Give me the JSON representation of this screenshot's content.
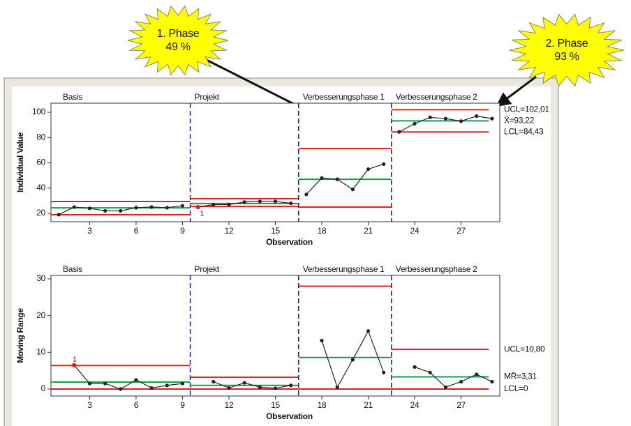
{
  "callouts": [
    {
      "title": "1. Phase",
      "value": "49 %"
    },
    {
      "title": "2. Phase",
      "value": "93 %"
    }
  ],
  "chart_data": [
    {
      "type": "line",
      "ylabel": "Individual Value",
      "xlabel": "Observation",
      "x": [
        1,
        2,
        3,
        4,
        5,
        6,
        7,
        8,
        9,
        10,
        11,
        12,
        13,
        14,
        15,
        16,
        17,
        18,
        19,
        20,
        21,
        22,
        23,
        24,
        25,
        26,
        27,
        28,
        29
      ],
      "values": [
        19,
        25,
        24,
        22,
        22,
        24.5,
        25,
        24.5,
        26,
        25,
        27,
        27,
        29,
        29.5,
        29.5,
        28,
        35,
        48,
        47,
        39,
        55,
        59,
        84.5,
        91,
        96,
        95,
        93,
        97,
        95
      ],
      "color": "#222222",
      "highlight_color": "#e02020",
      "flags": [
        {
          "index": 9,
          "label": "1"
        }
      ],
      "xlim": [
        0.5,
        29.5
      ],
      "xticks": [
        3,
        6,
        9,
        12,
        15,
        18,
        21,
        24,
        27
      ],
      "ylim": [
        13.4,
        107.2
      ],
      "yticks": [
        20,
        40,
        60,
        80,
        100
      ],
      "phases": [
        {
          "name": "Basis",
          "first": 1,
          "last": 9,
          "ucl": 29.4,
          "mean": 24.4,
          "lcl": 18.9
        },
        {
          "name": "Projekt",
          "first": 10,
          "last": 16,
          "ucl": 31.6,
          "mean": 27.8,
          "lcl": 25.5
        },
        {
          "name": "Verbesserungsphase 1",
          "first": 17,
          "last": 22,
          "ucl": 71.3,
          "mean": 47,
          "lcl": 25
        },
        {
          "name": "Verbesserungsphase 2",
          "first": 23,
          "last": 29,
          "ucl": 102.01,
          "mean": 93.22,
          "lcl": 84.43
        }
      ],
      "limit_labels": [
        {
          "value": 102.01,
          "label": "UCL=102,01"
        },
        {
          "value": 93.22,
          "label": "X̄=93,22"
        },
        {
          "value": 84.43,
          "label": "LCL=84,43"
        }
      ]
    },
    {
      "type": "line",
      "ylabel": "Moving Range",
      "xlabel": "Observation",
      "x": [
        1,
        2,
        3,
        4,
        5,
        6,
        7,
        8,
        9,
        10,
        11,
        12,
        13,
        14,
        15,
        16,
        17,
        18,
        19,
        20,
        21,
        22,
        23,
        24,
        25,
        26,
        27,
        28,
        29
      ],
      "values": [
        null,
        6.5,
        1.5,
        1.5,
        0,
        2.5,
        0.3,
        1,
        1.5,
        null,
        2,
        0.3,
        1.7,
        0.5,
        0.2,
        1,
        null,
        13.2,
        0.5,
        8,
        15.8,
        4.5,
        null,
        6,
        4.5,
        0.5,
        2,
        4,
        2
      ],
      "color": "#222222",
      "highlight_color": "#e02020",
      "flags": [
        {
          "index": 1,
          "label": "1"
        }
      ],
      "xlim": [
        0.5,
        29.5
      ],
      "xticks": [
        3,
        6,
        9,
        12,
        15,
        18,
        21,
        24,
        27
      ],
      "ylim": [
        -1.9,
        30.95
      ],
      "yticks": [
        0,
        10,
        20,
        30
      ],
      "phases": [
        {
          "name": "Basis",
          "first": 1,
          "last": 9,
          "ucl": 6.4,
          "mean": 1.9,
          "lcl": 0
        },
        {
          "name": "Projekt",
          "first": 10,
          "last": 16,
          "ucl": 3.2,
          "mean": 1.0,
          "lcl": 0
        },
        {
          "name": "Verbesserungsphase 1",
          "first": 17,
          "last": 22,
          "ucl": 28,
          "mean": 8.6,
          "lcl": 0
        },
        {
          "name": "Verbesserungsphase 2",
          "first": 23,
          "last": 29,
          "ucl": 10.8,
          "mean": 3.31,
          "lcl": 0
        }
      ],
      "limit_labels": [
        {
          "value": 10.8,
          "label": "UCL=10,80"
        },
        {
          "value": 3.31,
          "label": "MR̄=3,31"
        },
        {
          "value": 0,
          "label": "LCL=0"
        }
      ]
    }
  ]
}
